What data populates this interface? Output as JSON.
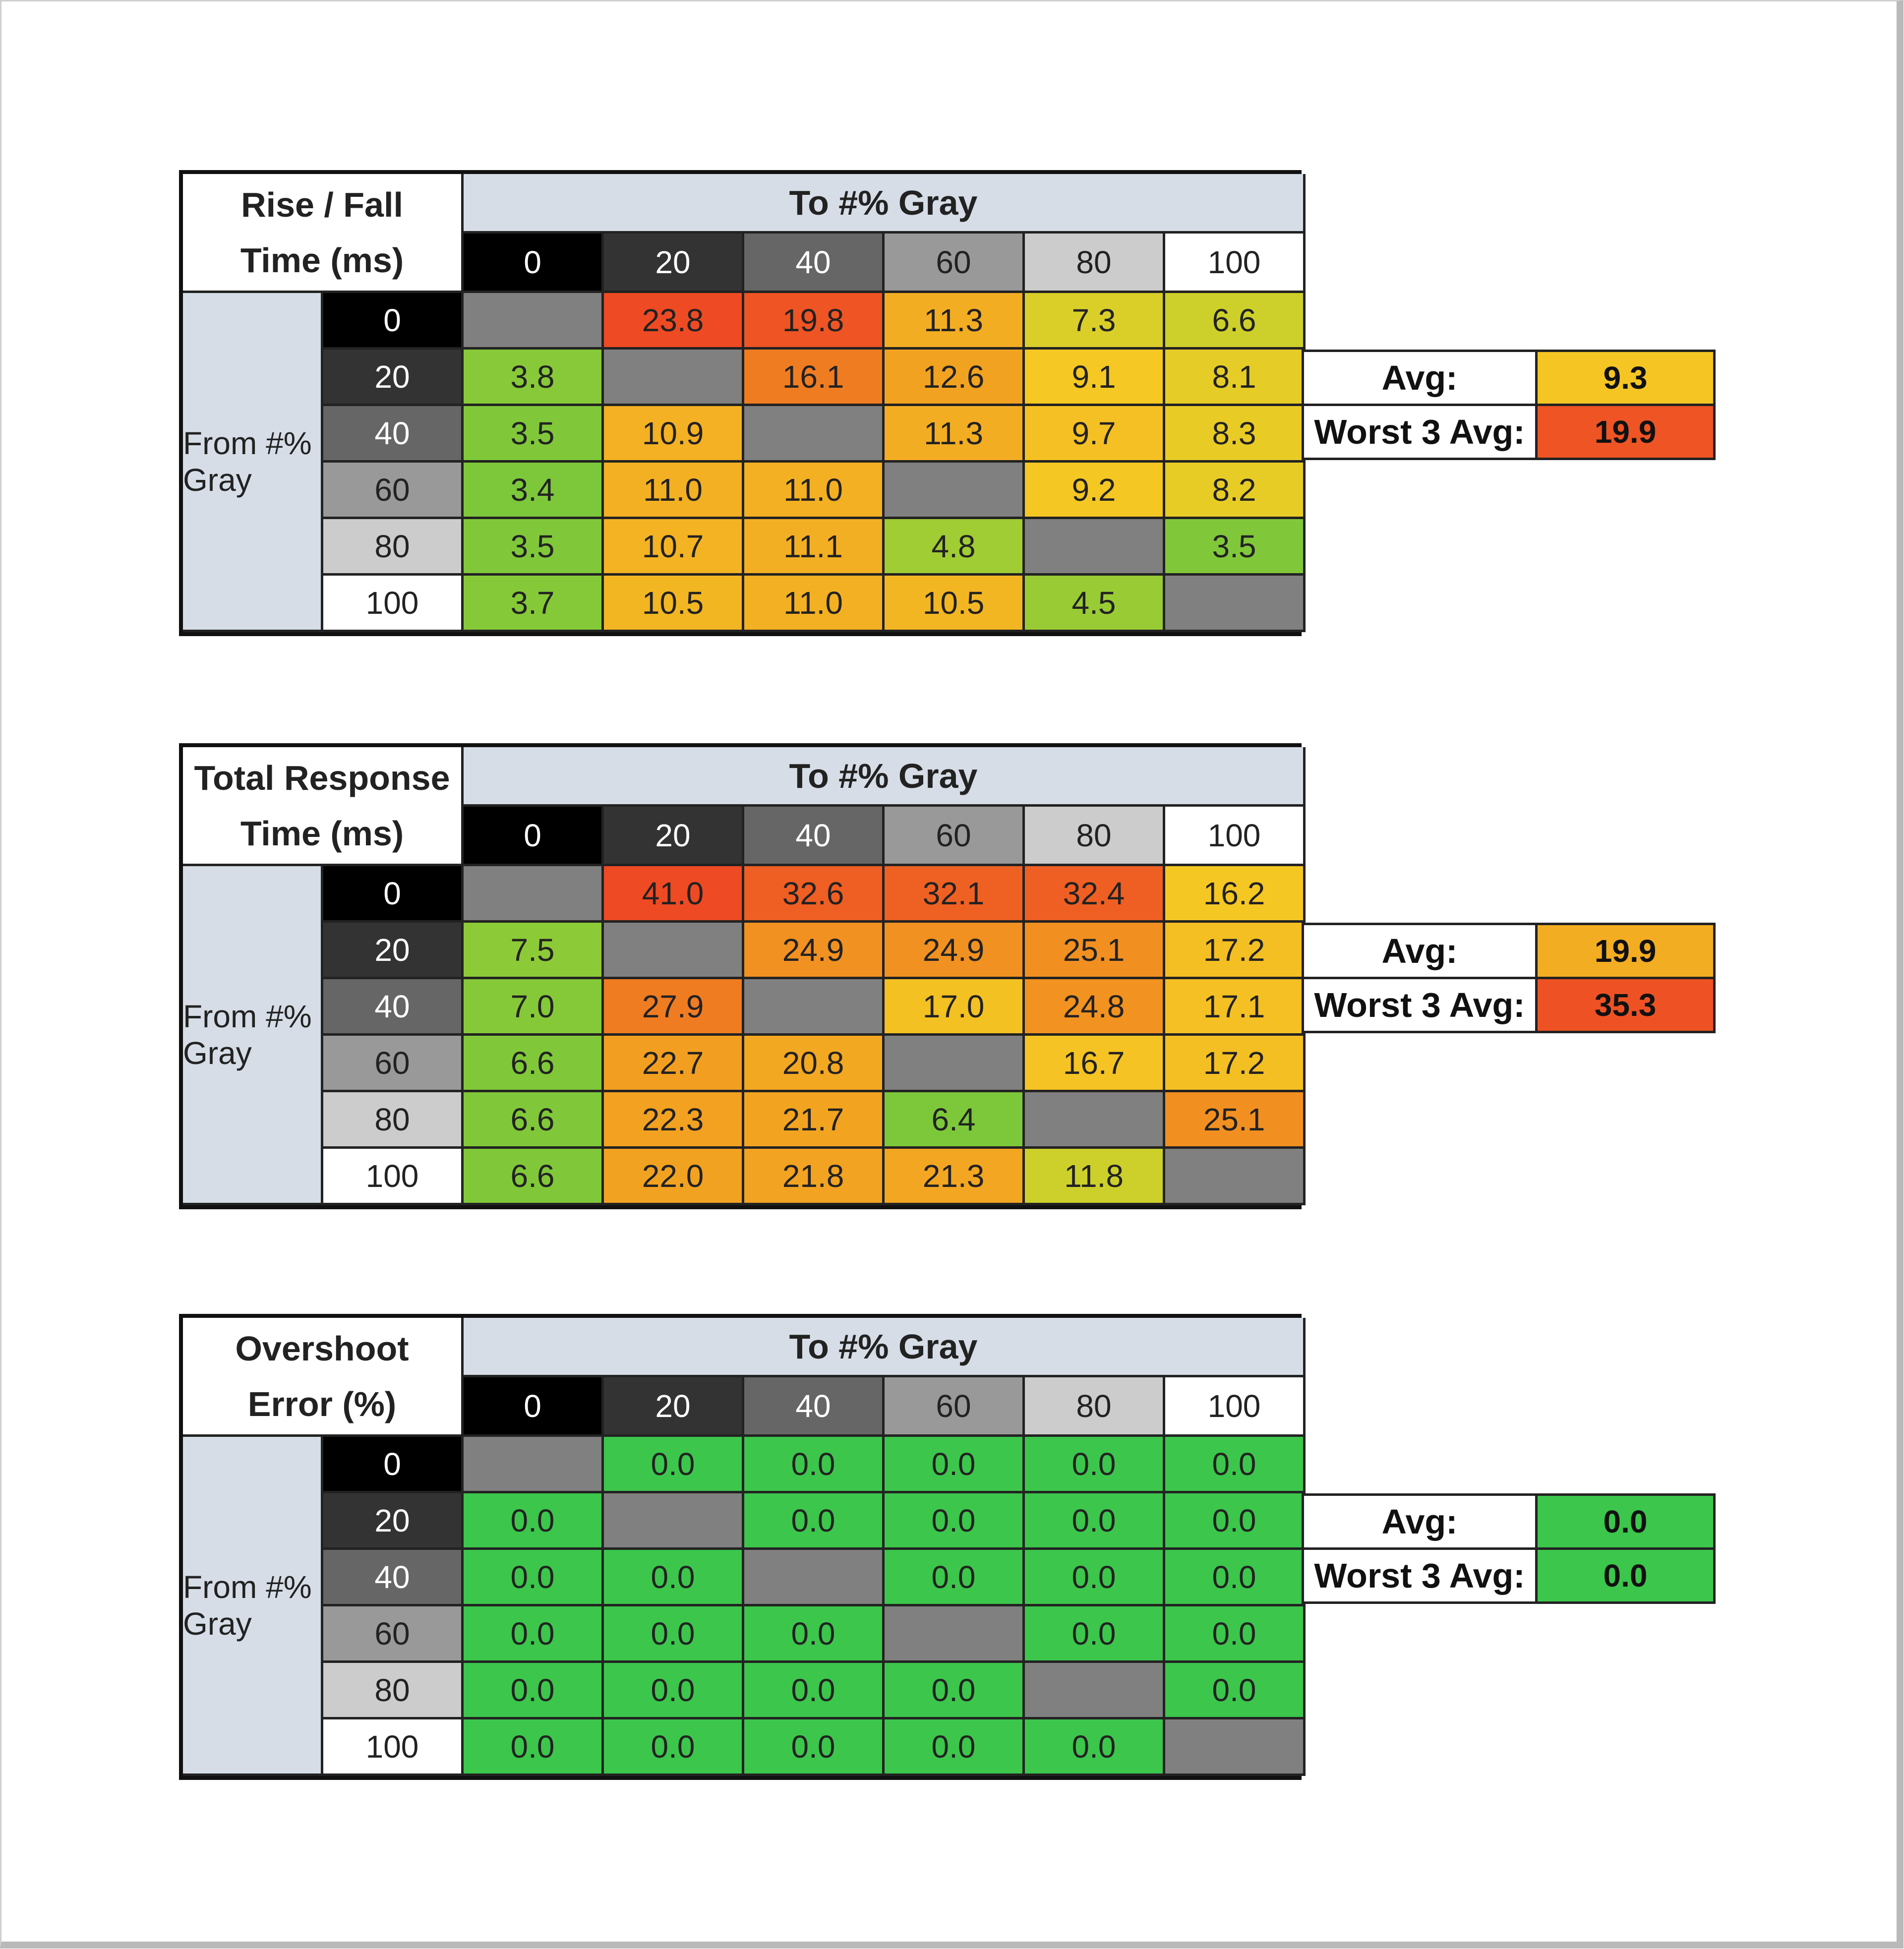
{
  "colors": {
    "header_blue": "#d6dde6",
    "diagonal_gray": "#808080",
    "gray_levels": [
      "#000000",
      "#333333",
      "#666666",
      "#999999",
      "#cccccc",
      "#ffffff"
    ],
    "scale_stops": [
      "#7dc83a",
      "#d4d12a",
      "#f5c823",
      "#f3b023",
      "#f29a20",
      "#f07a22",
      "#ee5424",
      "#ee4a24"
    ],
    "zero_green": "#3cc64c"
  },
  "tables": [
    {
      "title_lines": [
        "Rise / Fall",
        "Time (ms)"
      ],
      "to_label": "To #% Gray",
      "from_label": "From #% Gray",
      "levels": [
        "0",
        "20",
        "40",
        "60",
        "80",
        "100"
      ],
      "rows": [
        [
          null,
          "23.8",
          "19.8",
          "11.3",
          "7.3",
          "6.6"
        ],
        [
          "3.8",
          null,
          "16.1",
          "12.6",
          "9.1",
          "8.1"
        ],
        [
          "3.5",
          "10.9",
          null,
          "11.3",
          "9.7",
          "8.3"
        ],
        [
          "3.4",
          "11.0",
          "11.0",
          null,
          "9.2",
          "8.2"
        ],
        [
          "3.5",
          "10.7",
          "11.1",
          "4.8",
          null,
          "3.5"
        ],
        [
          "3.7",
          "10.5",
          "11.0",
          "10.5",
          "4.5",
          null
        ]
      ],
      "avg_label": "Avg:",
      "avg_value": "9.3",
      "worst_label": "Worst 3 Avg:",
      "worst_value": "19.9"
    },
    {
      "title_lines": [
        "Total Response",
        "Time (ms)"
      ],
      "to_label": "To #% Gray",
      "from_label": "From #% Gray",
      "levels": [
        "0",
        "20",
        "40",
        "60",
        "80",
        "100"
      ],
      "rows": [
        [
          null,
          "41.0",
          "32.6",
          "32.1",
          "32.4",
          "16.2"
        ],
        [
          "7.5",
          null,
          "24.9",
          "24.9",
          "25.1",
          "17.2"
        ],
        [
          "7.0",
          "27.9",
          null,
          "17.0",
          "24.8",
          "17.1"
        ],
        [
          "6.6",
          "22.7",
          "20.8",
          null,
          "16.7",
          "17.2"
        ],
        [
          "6.6",
          "22.3",
          "21.7",
          "6.4",
          null,
          "25.1"
        ],
        [
          "6.6",
          "22.0",
          "21.8",
          "21.3",
          "11.8",
          null
        ]
      ],
      "avg_label": "Avg:",
      "avg_value": "19.9",
      "worst_label": "Worst 3 Avg:",
      "worst_value": "35.3"
    },
    {
      "title_lines": [
        "Overshoot",
        "Error (%)"
      ],
      "to_label": "To #% Gray",
      "from_label": "From #% Gray",
      "levels": [
        "0",
        "20",
        "40",
        "60",
        "80",
        "100"
      ],
      "rows": [
        [
          null,
          "0.0",
          "0.0",
          "0.0",
          "0.0",
          "0.0"
        ],
        [
          "0.0",
          null,
          "0.0",
          "0.0",
          "0.0",
          "0.0"
        ],
        [
          "0.0",
          "0.0",
          null,
          "0.0",
          "0.0",
          "0.0"
        ],
        [
          "0.0",
          "0.0",
          "0.0",
          null,
          "0.0",
          "0.0"
        ],
        [
          "0.0",
          "0.0",
          "0.0",
          "0.0",
          null,
          "0.0"
        ],
        [
          "0.0",
          "0.0",
          "0.0",
          "0.0",
          "0.0",
          null
        ]
      ],
      "avg_label": "Avg:",
      "avg_value": "0.0",
      "worst_label": "Worst 3 Avg:",
      "worst_value": "0.0"
    }
  ]
}
